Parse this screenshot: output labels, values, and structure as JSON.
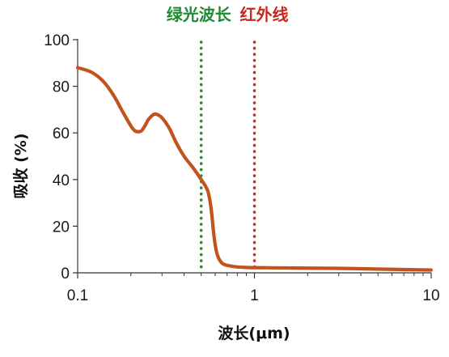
{
  "chart_data": {
    "type": "line",
    "xscale": "log",
    "xlim": [
      0.1,
      10
    ],
    "ylim": [
      0,
      100
    ],
    "xticks": [
      0.1,
      1,
      10
    ],
    "xtick_labels": [
      "0.1",
      "1",
      "10"
    ],
    "yticks": [
      0,
      20,
      40,
      60,
      80,
      100
    ],
    "ytick_labels": [
      "0",
      "20",
      "40",
      "60",
      "80",
      "100"
    ],
    "xlabel": "波长(μm)",
    "ylabel": "吸收 (%)",
    "grid": false,
    "series": [
      {
        "color": "#C0531E",
        "x": [
          0.1,
          0.12,
          0.14,
          0.16,
          0.18,
          0.2,
          0.21,
          0.22,
          0.23,
          0.24,
          0.25,
          0.26,
          0.27,
          0.28,
          0.3,
          0.33,
          0.36,
          0.4,
          0.45,
          0.5,
          0.53,
          0.55,
          0.57,
          0.59,
          0.61,
          0.63,
          0.66,
          0.7,
          0.75,
          0.8,
          0.9,
          1.0,
          1.5,
          2,
          3,
          5,
          7,
          10
        ],
        "y": [
          88,
          86,
          82,
          76,
          69,
          63,
          61,
          60.5,
          61,
          63,
          65.5,
          67,
          68,
          68,
          66.5,
          62,
          56,
          50,
          45,
          40,
          37,
          34,
          27,
          16,
          9,
          6,
          4,
          3.2,
          2.8,
          2.5,
          2.3,
          2.2,
          2.1,
          2.0,
          1.9,
          1.6,
          1.4,
          1.2
        ]
      }
    ],
    "reference_lines": [
      {
        "x": 0.5,
        "label": "绿光波长",
        "color": "#1E8A33"
      },
      {
        "x": 1.0,
        "label": "红外线",
        "color": "#C8281E"
      }
    ]
  }
}
